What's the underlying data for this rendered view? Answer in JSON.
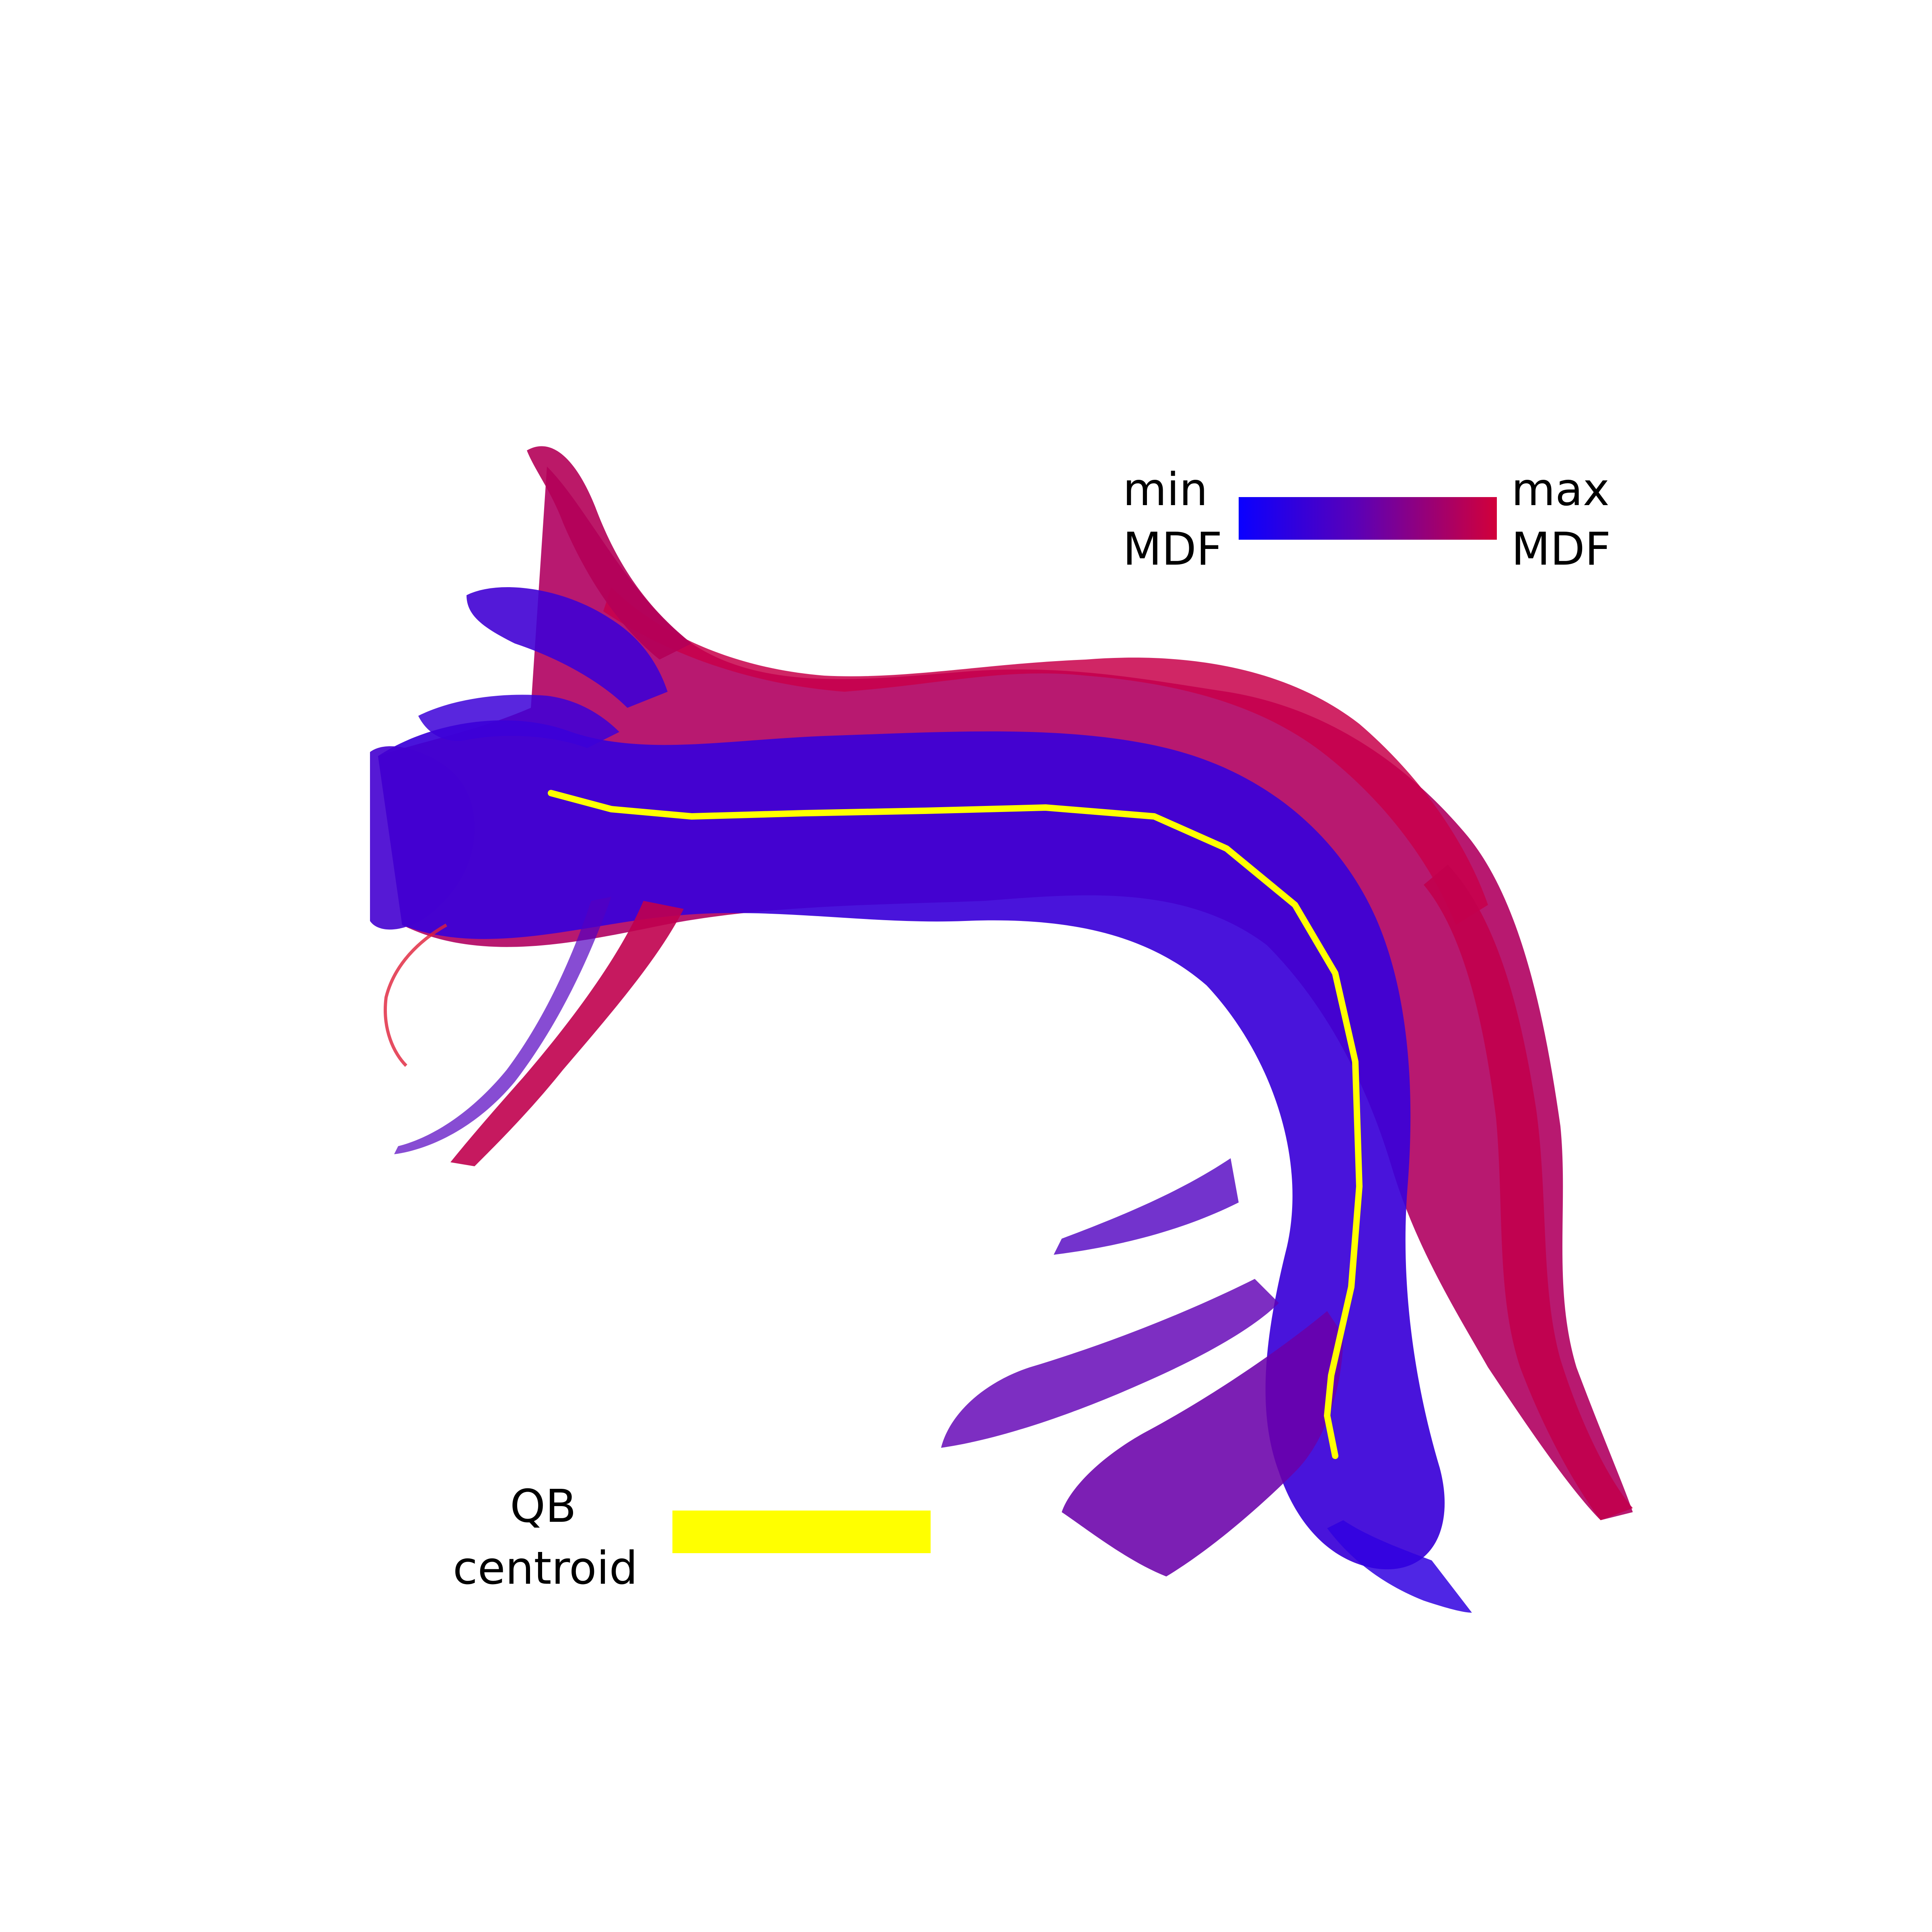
{
  "figure": {
    "description_colors": {
      "min_mdf": "#0a00ff",
      "mid": "#5a00b8",
      "max_mdf": "#d2003a",
      "centroid": "#ffff00",
      "background": "#ffffff"
    }
  },
  "legend": {
    "min_line1": "min",
    "min_line2": "MDF",
    "max_line1": "max",
    "max_line2": "MDF",
    "centroid_line1": "QB",
    "centroid_line2": "centroid"
  }
}
